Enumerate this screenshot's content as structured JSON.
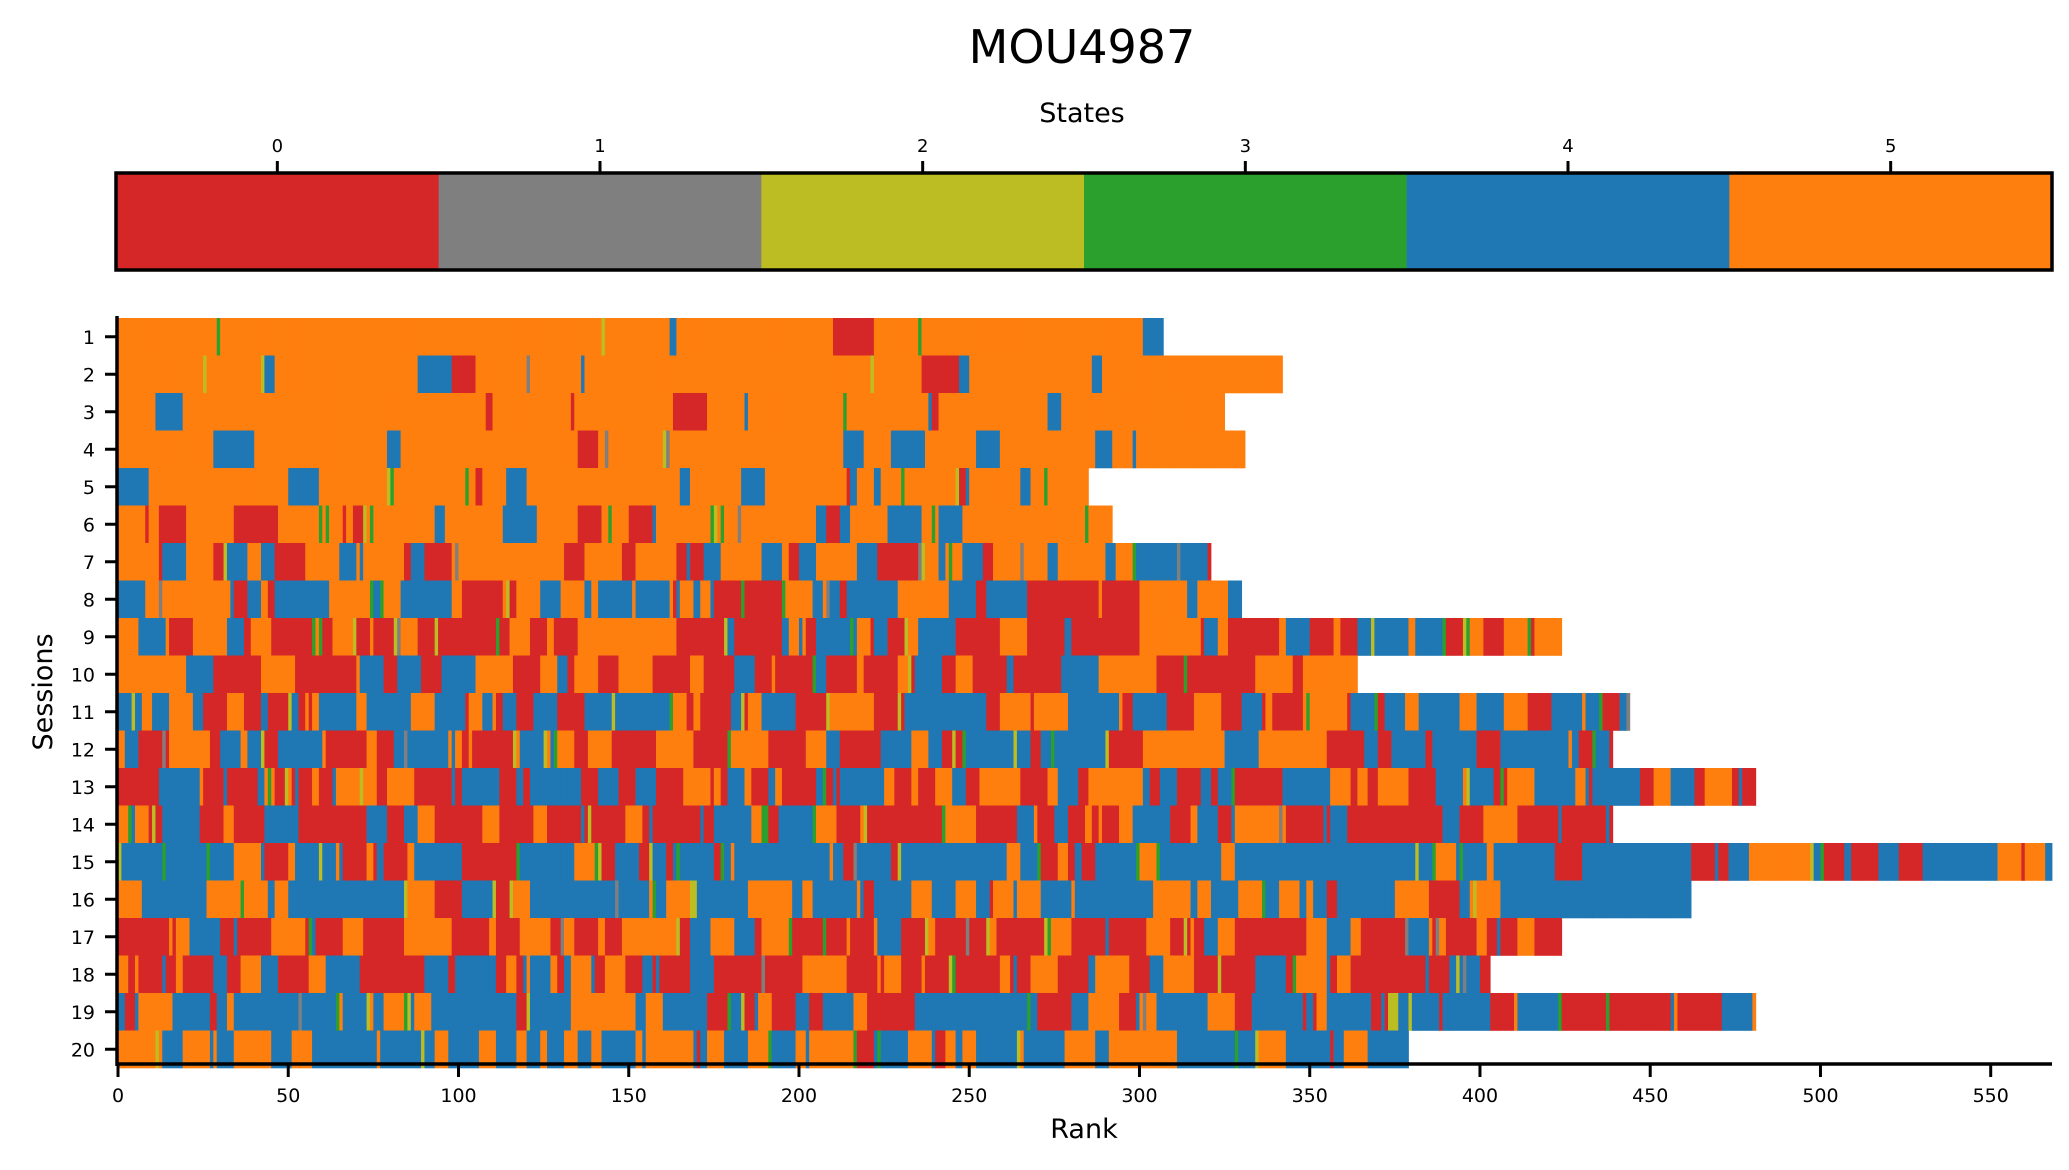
{
  "chart_data": {
    "type": "heatmap",
    "title": "MOU4987",
    "colorbar": {
      "label": "States",
      "position": "top",
      "ticks": [
        "0",
        "1",
        "2",
        "3",
        "4",
        "5"
      ],
      "colors": [
        "#d62728",
        "#7f7f7f",
        "#bcbd22",
        "#2ca02c",
        "#1f77b4",
        "#ff7f0e"
      ]
    },
    "xlabel": "Rank",
    "ylabel": "Sessions",
    "xlim": [
      0,
      568
    ],
    "xticks": [
      0,
      50,
      100,
      150,
      200,
      250,
      300,
      350,
      400,
      450,
      500,
      550
    ],
    "grid": false,
    "sessions": [
      {
        "label": "1",
        "length": 307,
        "mix": [
          0.03,
          0.01,
          0.02,
          0.02,
          0.05,
          0.87
        ]
      },
      {
        "label": "2",
        "length": 342,
        "mix": [
          0.03,
          0.01,
          0.02,
          0.02,
          0.04,
          0.88
        ]
      },
      {
        "label": "3",
        "length": 325,
        "mix": [
          0.03,
          0.01,
          0.02,
          0.02,
          0.06,
          0.86
        ]
      },
      {
        "label": "4",
        "length": 331,
        "mix": [
          0.05,
          0.01,
          0.03,
          0.02,
          0.08,
          0.81
        ]
      },
      {
        "label": "5",
        "length": 285,
        "mix": [
          0.07,
          0.01,
          0.04,
          0.03,
          0.15,
          0.7
        ]
      },
      {
        "label": "6",
        "length": 292,
        "mix": [
          0.18,
          0.01,
          0.04,
          0.04,
          0.13,
          0.6
        ]
      },
      {
        "label": "7",
        "length": 321,
        "mix": [
          0.17,
          0.01,
          0.05,
          0.04,
          0.3,
          0.43
        ]
      },
      {
        "label": "8",
        "length": 330,
        "mix": [
          0.15,
          0.01,
          0.05,
          0.04,
          0.38,
          0.37
        ]
      },
      {
        "label": "9",
        "length": 424,
        "mix": [
          0.35,
          0.01,
          0.05,
          0.06,
          0.18,
          0.35
        ]
      },
      {
        "label": "10",
        "length": 364,
        "mix": [
          0.44,
          0.01,
          0.05,
          0.07,
          0.15,
          0.28
        ]
      },
      {
        "label": "11",
        "length": 444,
        "mix": [
          0.31,
          0.01,
          0.05,
          0.05,
          0.36,
          0.22
        ]
      },
      {
        "label": "12",
        "length": 439,
        "mix": [
          0.24,
          0.01,
          0.06,
          0.05,
          0.36,
          0.28
        ]
      },
      {
        "label": "13",
        "length": 481,
        "mix": [
          0.38,
          0.01,
          0.05,
          0.05,
          0.3,
          0.21
        ]
      },
      {
        "label": "14",
        "length": 439,
        "mix": [
          0.5,
          0.01,
          0.04,
          0.05,
          0.19,
          0.21
        ]
      },
      {
        "label": "15",
        "length": 568,
        "mix": [
          0.19,
          0.01,
          0.07,
          0.05,
          0.55,
          0.13
        ]
      },
      {
        "label": "16",
        "length": 462,
        "mix": [
          0.09,
          0.01,
          0.06,
          0.04,
          0.59,
          0.21
        ]
      },
      {
        "label": "17",
        "length": 424,
        "mix": [
          0.44,
          0.01,
          0.05,
          0.05,
          0.14,
          0.31
        ]
      },
      {
        "label": "18",
        "length": 403,
        "mix": [
          0.45,
          0.01,
          0.05,
          0.05,
          0.17,
          0.27
        ]
      },
      {
        "label": "19",
        "length": 481,
        "mix": [
          0.19,
          0.01,
          0.06,
          0.05,
          0.51,
          0.18
        ]
      },
      {
        "label": "20",
        "length": 379,
        "mix": [
          0.05,
          0.01,
          0.05,
          0.03,
          0.6,
          0.26
        ]
      }
    ]
  }
}
